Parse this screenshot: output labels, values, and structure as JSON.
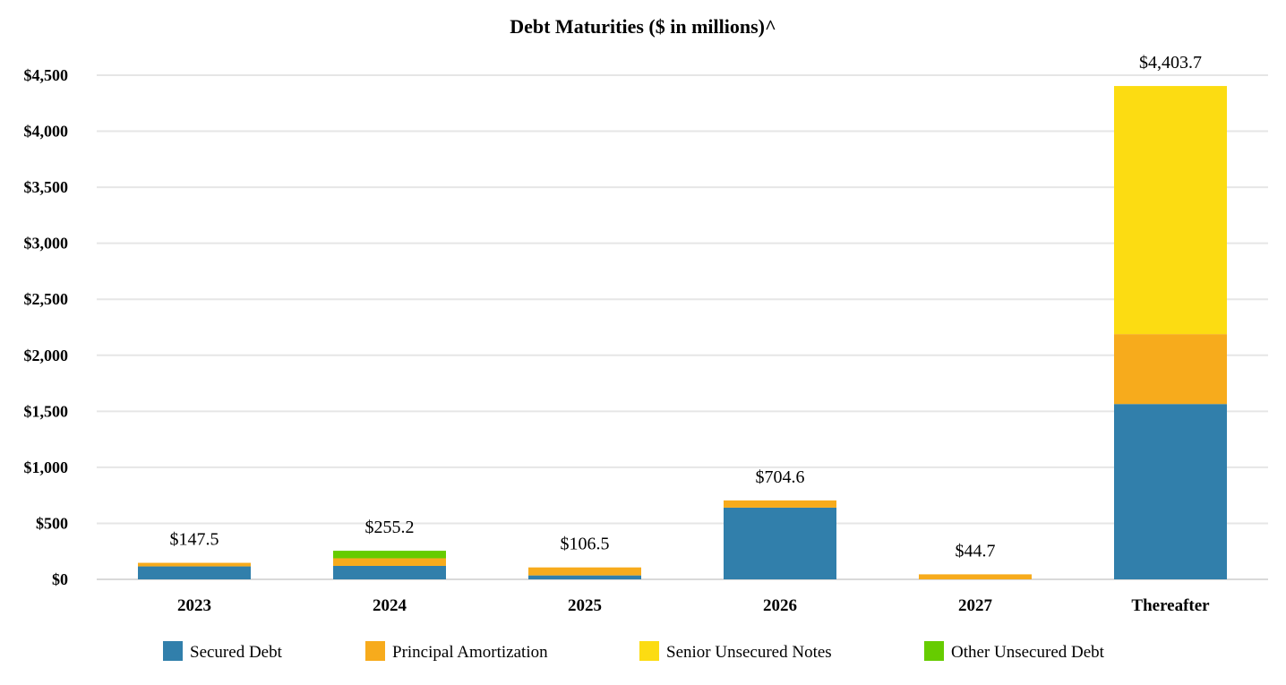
{
  "chart_data": {
    "type": "bar",
    "stacked": true,
    "title": "Debt Maturities ($ in millions)^",
    "xlabel": "",
    "ylabel": "",
    "categories": [
      "2023",
      "2024",
      "2025",
      "2026",
      "2027",
      "Thereafter"
    ],
    "series": [
      {
        "name": "Secured Debt",
        "color": "#317fab",
        "values": [
          115.5,
          120.0,
          35.0,
          640.0,
          0,
          1565.0
        ]
      },
      {
        "name": "Principal Amortization",
        "color": "#f7ab1c",
        "values": [
          32.0,
          68.0,
          71.5,
          64.6,
          44.7,
          624.0
        ]
      },
      {
        "name": "Senior Unsecured Notes",
        "color": "#fcdc12",
        "values": [
          0,
          0,
          0,
          0,
          0,
          2214.7
        ]
      },
      {
        "name": "Other Unsecured Debt",
        "color": "#66cc00",
        "values": [
          0,
          67.2,
          0,
          0,
          0,
          0
        ]
      }
    ],
    "totals": [
      "$147.5",
      "$255.2",
      "$106.5",
      "$704.6",
      "$44.7",
      "$4,403.7"
    ],
    "ylim": [
      0,
      4500
    ],
    "yticks": [
      "$0",
      "$500",
      "$1,000",
      "$1,500",
      "$2,000",
      "$2,500",
      "$3,000",
      "$3,500",
      "$4,000",
      "$4,500"
    ],
    "grid": true,
    "legend": "bottom"
  }
}
